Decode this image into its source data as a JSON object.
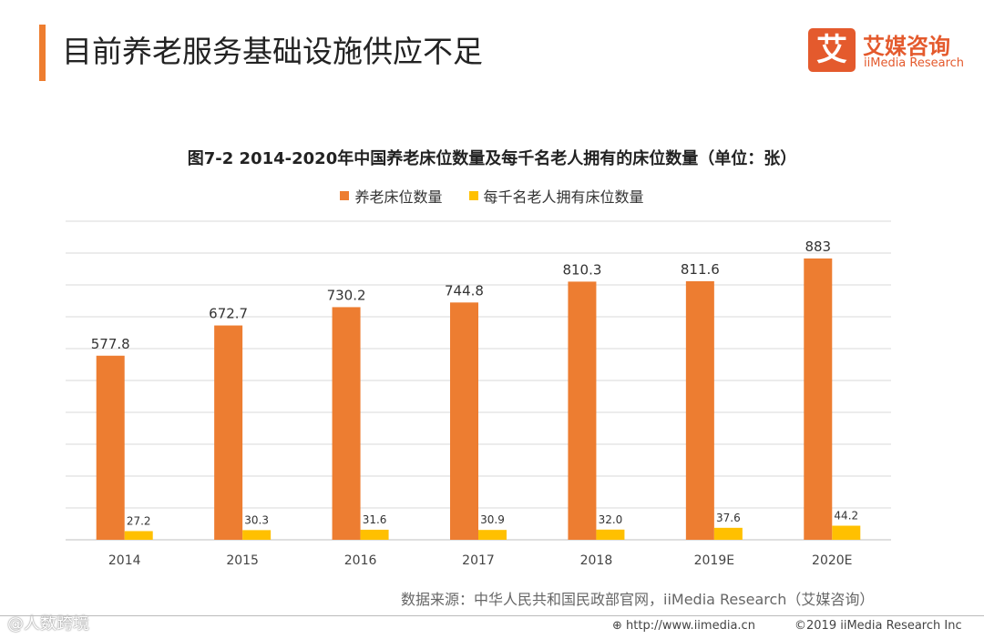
{
  "header": {
    "title": "目前养老服务基础设施供应不足",
    "accent_color": "#EE7D2F"
  },
  "logo": {
    "mark": "艾",
    "name_cn": "艾媒咨询",
    "name_en": "iiMedia Research",
    "color": "#E45A2D"
  },
  "chart_data": {
    "type": "bar",
    "title": "图7-2 2014-2020年中国养老床位数量及每千名老人拥有的床位数量（单位：张）",
    "categories": [
      "2014",
      "2015",
      "2016",
      "2017",
      "2018",
      "2019E",
      "2020E"
    ],
    "series": [
      {
        "name": "养老床位数量",
        "color": "#ED7D31",
        "values": [
          577.8,
          672.7,
          730.2,
          744.8,
          810.3,
          811.6,
          883
        ],
        "labels": [
          "577.8",
          "672.7",
          "730.2",
          "744.8",
          "810.3",
          "811.6",
          "883"
        ]
      },
      {
        "name": "每千名老人拥有床位数量",
        "color": "#FFC000",
        "values": [
          27.2,
          30.3,
          31.6,
          30.9,
          32.0,
          37.6,
          44.2
        ],
        "labels": [
          "27.2",
          "30.3",
          "31.6",
          "30.9",
          "32.0",
          "37.6",
          "44.2"
        ]
      }
    ],
    "ylim": [
      0,
      1000
    ],
    "grid": true,
    "legend_position": "top"
  },
  "source": "数据来源：中华人民共和国民政部官网，iiMedia Research（艾媒咨询）",
  "footer": {
    "url": "http://www.iimedia.cn",
    "copyright": "©2019  iiMedia Research  Inc"
  },
  "watermark": "@人数跨境"
}
